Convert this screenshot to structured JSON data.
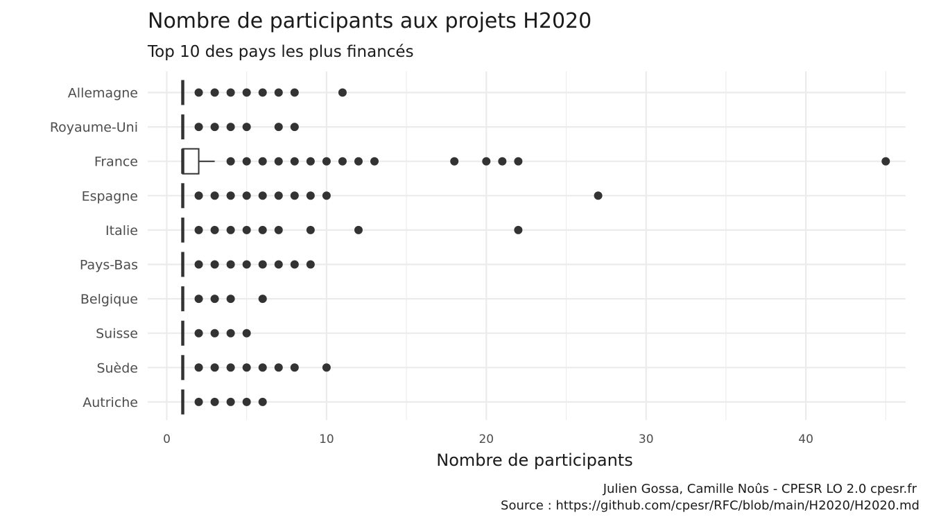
{
  "chart_data": {
    "type": "boxplot",
    "orientation": "horizontal",
    "title": "Nombre de participants aux projets H2020",
    "subtitle": "Top 10 des pays les plus financés",
    "xlabel": "Nombre de participants",
    "ylabel": "",
    "xlim": [
      0,
      47
    ],
    "x_ticks": [
      0,
      10,
      20,
      30,
      40
    ],
    "x_tick_labels": [
      "0",
      "10",
      "20",
      "30",
      "40"
    ],
    "grid": true,
    "legend": "none",
    "categories": [
      "Allemagne",
      "Royaume-Uni",
      "France",
      "Espagne",
      "Italie",
      "Pays-Bas",
      "Belgique",
      "Suisse",
      "Suède",
      "Autriche"
    ],
    "boxes": [
      {
        "category": "Allemagne",
        "min": 1,
        "q1": 1,
        "median": 1,
        "q3": 1,
        "max": 1,
        "outliers": [
          2,
          3,
          4,
          5,
          6,
          7,
          8,
          11
        ]
      },
      {
        "category": "Royaume-Uni",
        "min": 1,
        "q1": 1,
        "median": 1,
        "q3": 1,
        "max": 1,
        "outliers": [
          2,
          3,
          4,
          5,
          7,
          8
        ]
      },
      {
        "category": "France",
        "min": 1,
        "q1": 1,
        "median": 1,
        "q3": 2,
        "max": 3,
        "outliers": [
          4,
          5,
          6,
          7,
          8,
          9,
          10,
          11,
          12,
          13,
          18,
          20,
          21,
          22,
          45
        ]
      },
      {
        "category": "Espagne",
        "min": 1,
        "q1": 1,
        "median": 1,
        "q3": 1,
        "max": 1,
        "outliers": [
          2,
          3,
          4,
          5,
          6,
          7,
          8,
          9,
          10,
          27
        ]
      },
      {
        "category": "Italie",
        "min": 1,
        "q1": 1,
        "median": 1,
        "q3": 1,
        "max": 1,
        "outliers": [
          2,
          3,
          4,
          5,
          6,
          7,
          9,
          12,
          22
        ]
      },
      {
        "category": "Pays-Bas",
        "min": 1,
        "q1": 1,
        "median": 1,
        "q3": 1,
        "max": 1,
        "outliers": [
          2,
          3,
          4,
          5,
          6,
          7,
          8,
          9
        ]
      },
      {
        "category": "Belgique",
        "min": 1,
        "q1": 1,
        "median": 1,
        "q3": 1,
        "max": 1,
        "outliers": [
          2,
          3,
          4,
          6
        ]
      },
      {
        "category": "Suisse",
        "min": 1,
        "q1": 1,
        "median": 1,
        "q3": 1,
        "max": 1,
        "outliers": [
          2,
          3,
          4,
          5
        ]
      },
      {
        "category": "Suède",
        "min": 1,
        "q1": 1,
        "median": 1,
        "q3": 1,
        "max": 1,
        "outliers": [
          2,
          3,
          4,
          5,
          6,
          7,
          8,
          10
        ]
      },
      {
        "category": "Autriche",
        "min": 1,
        "q1": 1,
        "median": 1,
        "q3": 1,
        "max": 1,
        "outliers": [
          2,
          3,
          4,
          5,
          6
        ]
      }
    ],
    "colors": {
      "marks": "#333333",
      "grid": "#ebebeb",
      "text": "#1a1a1a",
      "tick_text": "#4d4d4d"
    }
  },
  "caption": {
    "line1": "Julien Gossa, Camille Noûs - CPESR LO 2.0 cpesr.fr",
    "line2": "Source : https://github.com/cpesr/RFC/blob/main/H2020/H2020.md"
  }
}
